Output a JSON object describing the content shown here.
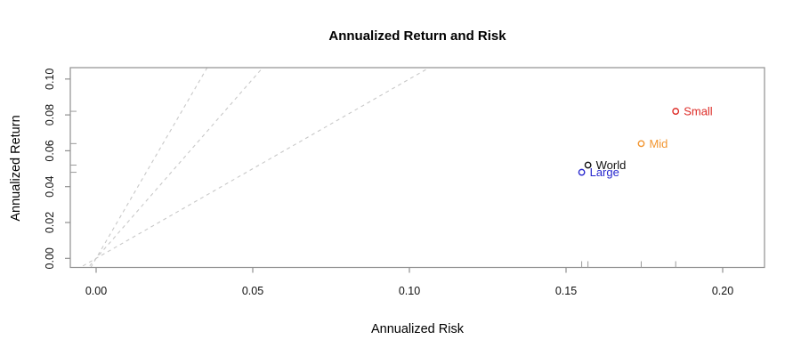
{
  "figure": {
    "title": "Annualized Return and Risk",
    "background": "#ffffff"
  },
  "chart_data": {
    "type": "scatter",
    "title": "Annualized Return and Risk",
    "xlabel": "Annualized Risk",
    "ylabel": "Annualized Return",
    "xlim": [
      -0.008,
      0.213
    ],
    "ylim": [
      -0.005,
      0.106
    ],
    "grid": false,
    "legend": "none",
    "x_tick_values": [
      0.0,
      0.05,
      0.1,
      0.15,
      0.2
    ],
    "x_tick_labels": [
      "0.00",
      "0.05",
      "0.10",
      "0.15",
      "0.20"
    ],
    "y_tick_values": [
      0.0,
      0.02,
      0.04,
      0.06,
      0.08,
      0.1
    ],
    "y_tick_labels": [
      "0.00",
      "0.02",
      "0.04",
      "0.06",
      "0.08",
      "0.10"
    ],
    "points": [
      {
        "label": "Small",
        "x": 0.185,
        "y": 0.082,
        "color": "#dd2b26"
      },
      {
        "label": "Mid",
        "x": 0.174,
        "y": 0.064,
        "color": "#f2952f"
      },
      {
        "label": "World",
        "x": 0.157,
        "y": 0.052,
        "color": "#111111"
      },
      {
        "label": "Large",
        "x": 0.155,
        "y": 0.048,
        "color": "#2727ce"
      }
    ],
    "rug_x": [
      0.155,
      0.157,
      0.174,
      0.185
    ],
    "rug_y": [
      0.048,
      0.052,
      0.064,
      0.082
    ],
    "reference_lines": [
      {
        "slope": 1,
        "intercept": 0,
        "style": "dashed"
      },
      {
        "slope": 2,
        "intercept": 0,
        "style": "dashed"
      },
      {
        "slope": 3,
        "intercept": 0,
        "style": "dashed"
      }
    ],
    "colors": {
      "axis_line": "#8f8f8f",
      "tick_label": "#111111",
      "reference_line": "#c8c8c8",
      "rug_mark": "#9a9a9a"
    }
  }
}
